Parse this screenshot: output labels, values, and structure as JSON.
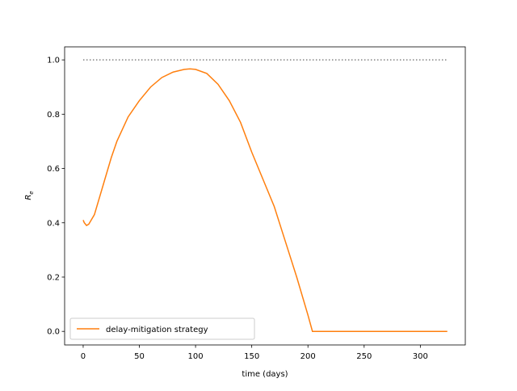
{
  "chart_data": {
    "type": "line",
    "xlabel": "time (days)",
    "ylabel": {
      "text": "R",
      "subscript": "e"
    },
    "x": [
      0,
      1,
      3,
      5,
      10,
      15,
      20,
      25,
      30,
      40,
      50,
      60,
      70,
      80,
      90,
      95,
      100,
      110,
      120,
      130,
      140,
      150,
      160,
      170,
      180,
      190,
      200,
      204,
      250,
      300,
      324
    ],
    "series": [
      {
        "name": "delay-mitigation strategy",
        "color": "#ff7f0e",
        "values": [
          0.41,
          0.4,
          0.39,
          0.395,
          0.43,
          0.5,
          0.57,
          0.64,
          0.7,
          0.79,
          0.85,
          0.9,
          0.935,
          0.955,
          0.965,
          0.967,
          0.965,
          0.95,
          0.91,
          0.85,
          0.77,
          0.66,
          0.56,
          0.46,
          0.33,
          0.2,
          0.06,
          0.0,
          0.0,
          0.0,
          0.0
        ]
      }
    ],
    "reference_line": {
      "y": 1.0,
      "x": [
        0,
        324
      ],
      "color": "#808080",
      "style": "dotted"
    },
    "xlim": [
      -16.5,
      340
    ],
    "ylim": [
      -0.05,
      1.048
    ],
    "xticks": [
      0,
      50,
      100,
      150,
      200,
      250,
      300
    ],
    "yticks": [
      {
        "value": 0,
        "label": "0.0"
      },
      0.2,
      0.4,
      0.6,
      0.8,
      {
        "value": 1,
        "label": "1.0"
      }
    ],
    "legend": "lower left"
  }
}
